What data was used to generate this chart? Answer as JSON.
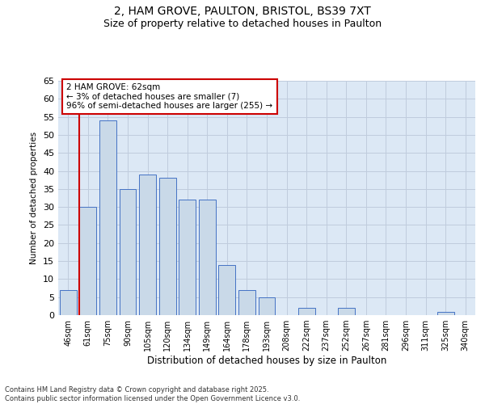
{
  "title_line1": "2, HAM GROVE, PAULTON, BRISTOL, BS39 7XT",
  "title_line2": "Size of property relative to detached houses in Paulton",
  "xlabel": "Distribution of detached houses by size in Paulton",
  "ylabel": "Number of detached properties",
  "categories": [
    "46sqm",
    "61sqm",
    "75sqm",
    "90sqm",
    "105sqm",
    "120sqm",
    "134sqm",
    "149sqm",
    "164sqm",
    "178sqm",
    "193sqm",
    "208sqm",
    "222sqm",
    "237sqm",
    "252sqm",
    "267sqm",
    "281sqm",
    "296sqm",
    "311sqm",
    "325sqm",
    "340sqm"
  ],
  "values": [
    7,
    30,
    54,
    35,
    39,
    38,
    32,
    32,
    14,
    7,
    5,
    0,
    2,
    0,
    2,
    0,
    0,
    0,
    0,
    1,
    0
  ],
  "bar_color": "#c9d9e8",
  "bar_edge_color": "#4472c4",
  "highlight_bar_index": 1,
  "highlight_line_color": "#cc0000",
  "ylim": [
    0,
    65
  ],
  "yticks": [
    0,
    5,
    10,
    15,
    20,
    25,
    30,
    35,
    40,
    45,
    50,
    55,
    60,
    65
  ],
  "grid_color": "#c0ccdd",
  "background_color": "#dce8f5",
  "annotation_text": "2 HAM GROVE: 62sqm\n← 3% of detached houses are smaller (7)\n96% of semi-detached houses are larger (255) →",
  "annotation_box_color": "#ffffff",
  "annotation_box_edge": "#cc0000",
  "footnote": "Contains HM Land Registry data © Crown copyright and database right 2025.\nContains public sector information licensed under the Open Government Licence v3.0."
}
